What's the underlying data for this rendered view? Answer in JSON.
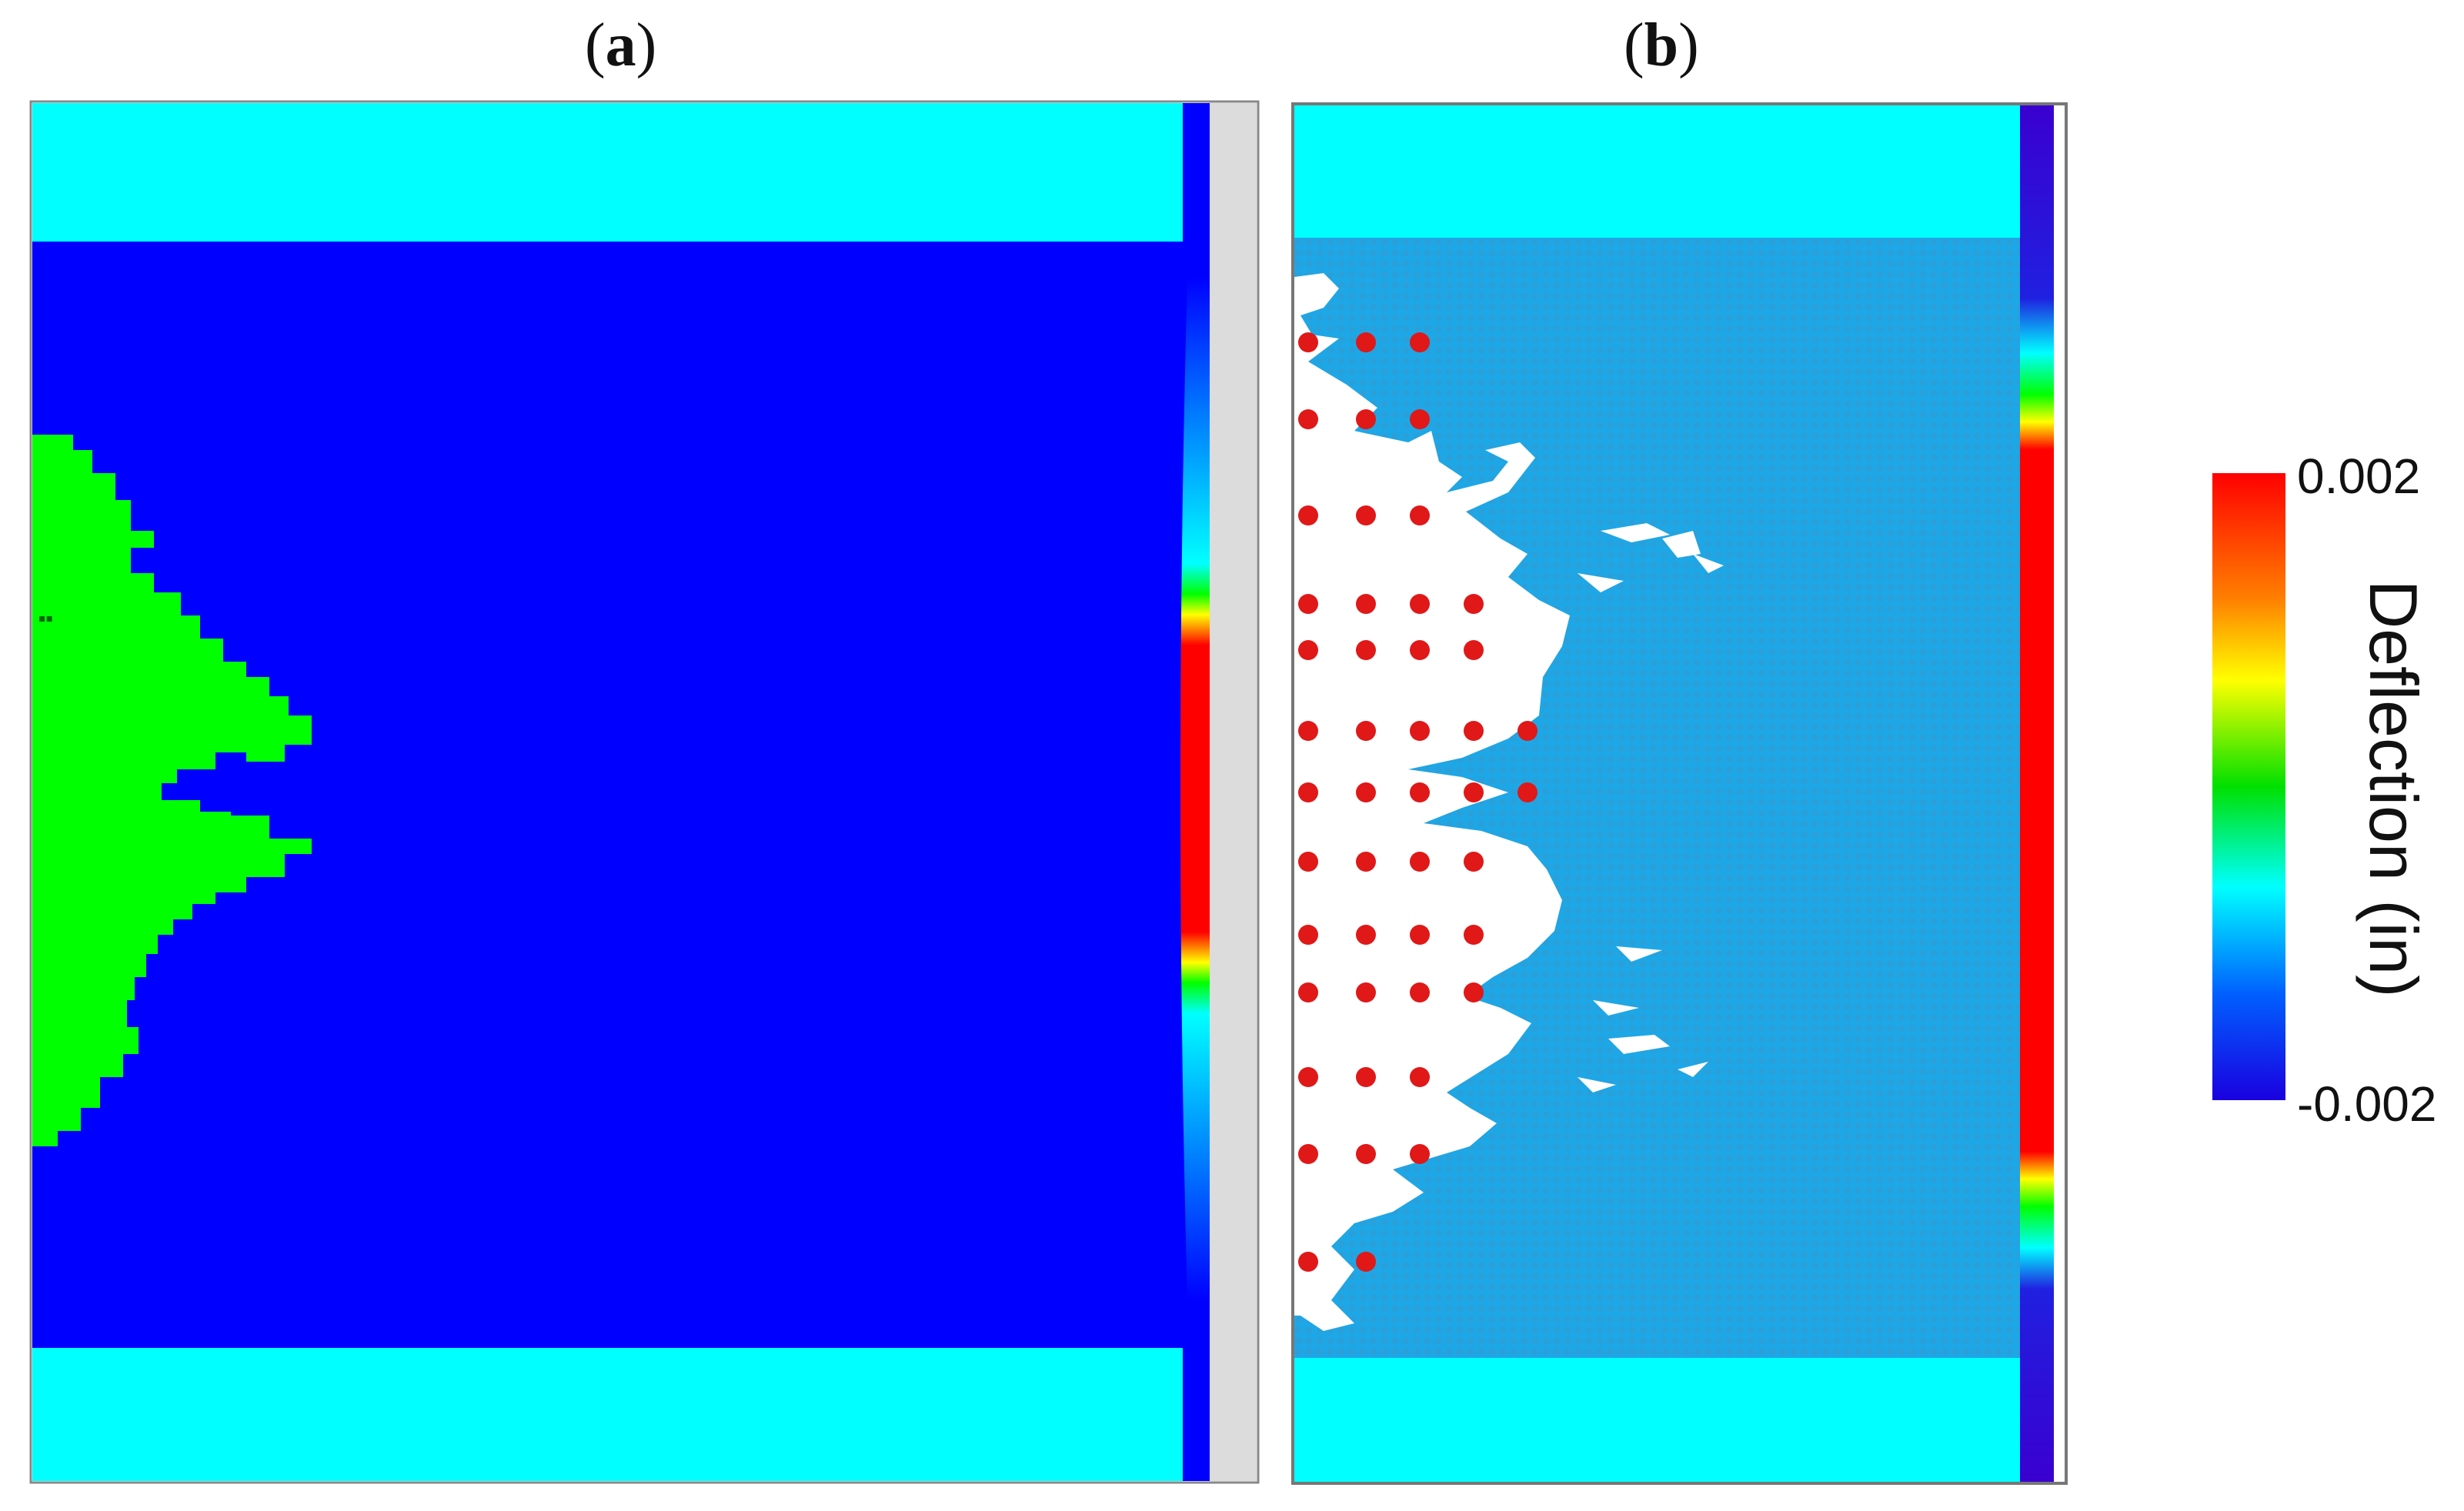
{
  "panels": [
    {
      "label_open": "(",
      "label_letter": "a",
      "label_close": ")"
    },
    {
      "label_open": "(",
      "label_letter": "b",
      "label_close": ")"
    }
  ],
  "colorbar": {
    "title": "Deflection (in)",
    "max_label": "0.002",
    "min_label": "-0.002",
    "range": [
      -0.002,
      0.002
    ],
    "stops": [
      "#ff0000",
      "#ff7f00",
      "#ffff00",
      "#00e000",
      "#00ffff",
      "#0060ff",
      "#1a00e0"
    ]
  },
  "colors": {
    "cyan_band": "#00ffff",
    "dark_blue": "#0000ff",
    "light_blue": "#1ea7e6",
    "green": "#00ff00",
    "red_dot": "#e01818",
    "gray_strip": "#dcdcdc"
  }
}
